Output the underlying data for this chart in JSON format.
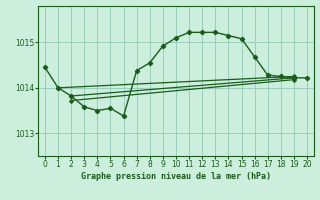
{
  "xlabel": "Graphe pression niveau de la mer (hPa)",
  "xlim": [
    -0.5,
    20.5
  ],
  "ylim": [
    1012.5,
    1015.8
  ],
  "yticks": [
    1013,
    1014,
    1015
  ],
  "xticks": [
    0,
    1,
    2,
    3,
    4,
    5,
    6,
    7,
    8,
    9,
    10,
    11,
    12,
    13,
    14,
    15,
    16,
    17,
    18,
    19,
    20
  ],
  "bg_color": "#cceedd",
  "grid_color": "#99ccbb",
  "line_color": "#1a5c1a",
  "line_main": [
    [
      0,
      1014.45
    ],
    [
      1,
      1014.0
    ],
    [
      2,
      1013.82
    ],
    [
      3,
      1013.58
    ],
    [
      4,
      1013.5
    ],
    [
      5,
      1013.55
    ],
    [
      6,
      1013.38
    ],
    [
      7,
      1014.38
    ],
    [
      8,
      1014.55
    ],
    [
      9,
      1014.92
    ],
    [
      10,
      1015.1
    ],
    [
      11,
      1015.22
    ],
    [
      12,
      1015.22
    ],
    [
      13,
      1015.22
    ],
    [
      14,
      1015.15
    ],
    [
      15,
      1015.08
    ],
    [
      16,
      1014.68
    ],
    [
      17,
      1014.28
    ],
    [
      18,
      1014.25
    ],
    [
      19,
      1014.22
    ],
    [
      20,
      1014.22
    ]
  ],
  "line_diag1": [
    [
      1,
      1014.0
    ],
    [
      19,
      1014.25
    ]
  ],
  "line_diag2": [
    [
      2,
      1013.82
    ],
    [
      19,
      1014.22
    ]
  ],
  "line_diag3": [
    [
      2,
      1013.72
    ],
    [
      19,
      1014.18
    ]
  ]
}
